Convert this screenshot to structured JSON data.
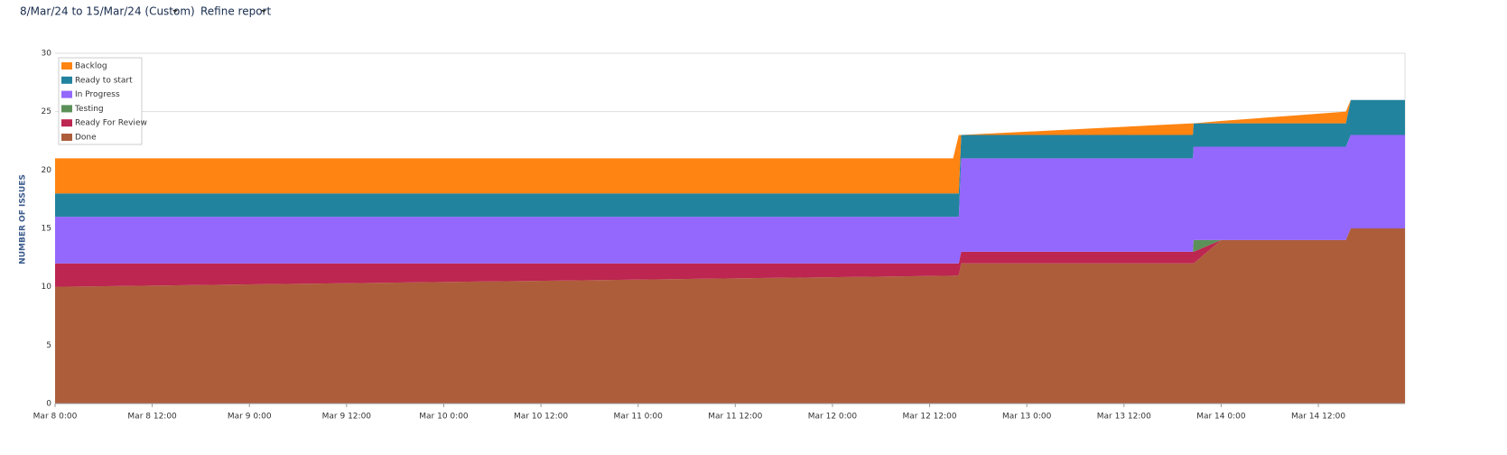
{
  "header": {
    "date_range": "8/Mar/24 to 15/Mar/24 (Custom)",
    "refine": "Refine report"
  },
  "chart_data": {
    "type": "stacked-area",
    "ylabel": "NUMBER OF ISSUES",
    "x": [
      0,
      110.9,
      111.6,
      111.9,
      140.5,
      140.6,
      144,
      159.4,
      160,
      166.7
    ],
    "xlim": [
      0,
      166.7
    ],
    "xticks": [
      {
        "value": 0,
        "label": "Mar 8 0:00"
      },
      {
        "value": 12,
        "label": "Mar 8 12:00"
      },
      {
        "value": 24,
        "label": "Mar 9 0:00"
      },
      {
        "value": 36,
        "label": "Mar 9 12:00"
      },
      {
        "value": 48,
        "label": "Mar 10 0:00"
      },
      {
        "value": 60,
        "label": "Mar 10 12:00"
      },
      {
        "value": 72,
        "label": "Mar 11 0:00"
      },
      {
        "value": 84,
        "label": "Mar 11 12:00"
      },
      {
        "value": 96,
        "label": "Mar 12 0:00"
      },
      {
        "value": 108,
        "label": "Mar 12 12:00"
      },
      {
        "value": 120,
        "label": "Mar 13 0:00"
      },
      {
        "value": 132,
        "label": "Mar 13 12:00"
      },
      {
        "value": 144,
        "label": "Mar 14 0:00"
      },
      {
        "value": 156,
        "label": "Mar 14 12:00"
      }
    ],
    "ylim": [
      0,
      30
    ],
    "yticks": [
      0,
      5,
      10,
      15,
      20,
      25,
      30
    ],
    "grid": true,
    "legend": "top-left",
    "series": [
      {
        "name": "Backlog",
        "color": "#ff8411",
        "values": [
          3,
          3,
          5,
          0,
          1,
          0,
          0.2,
          1,
          0,
          0
        ]
      },
      {
        "name": "Ready to start",
        "color": "#22839e",
        "values": [
          2,
          2,
          2,
          2,
          2,
          2,
          2,
          2,
          3,
          3
        ]
      },
      {
        "name": "In Progress",
        "color": "#9467fd",
        "values": [
          4,
          4,
          4,
          8,
          8,
          8,
          8,
          8,
          8,
          8
        ]
      },
      {
        "name": "Testing",
        "color": "#5b9158",
        "values": [
          0,
          0,
          0,
          0,
          0,
          1,
          0,
          0,
          0,
          0
        ]
      },
      {
        "name": "Ready For Review",
        "color": "#bc2650",
        "values": [
          2,
          1.05,
          1,
          1,
          1,
          1,
          0,
          0,
          0,
          0
        ]
      },
      {
        "name": "Done",
        "color": "#ae5d3b",
        "values": [
          10,
          10.95,
          11,
          12,
          12,
          12,
          14,
          14,
          15,
          15
        ]
      }
    ]
  }
}
